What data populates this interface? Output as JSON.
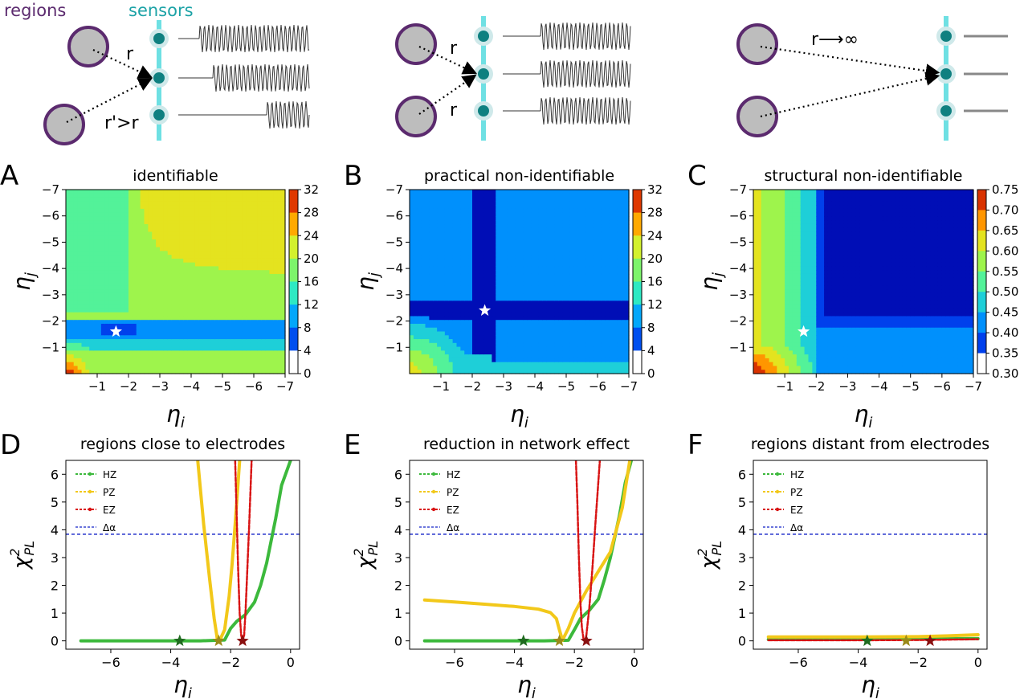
{
  "schematic": {
    "regions_label": "regions",
    "sensors_label": "sensors",
    "a": {
      "r": "r",
      "r_prime": "r'>r"
    },
    "b": {
      "r1": "r",
      "r2": "r"
    },
    "c": {
      "r_inf": "r⟶∞"
    }
  },
  "colors": {
    "regions": "#5b2a6e",
    "sensors": "#1ba2a6",
    "hz": "#3cb93c",
    "pz": "#f2c81a",
    "ez": "#d81414",
    "delta": "#1020c8"
  },
  "chart_data": [
    {
      "panel": "A",
      "type": "heatmap",
      "title": "identifiable",
      "xlabel": "ηi",
      "ylabel": "ηj",
      "xlim": [
        0,
        -7
      ],
      "ylim": [
        0,
        -7
      ],
      "xticks": [
        "−1",
        "−2",
        "−3",
        "−4",
        "−5",
        "−6",
        "−7"
      ],
      "yticks": [
        "−7",
        "−6",
        "−5",
        "−4",
        "−3",
        "−2",
        "−1"
      ],
      "colorbar": [
        0,
        4,
        8,
        12,
        16,
        20,
        24,
        28,
        32
      ],
      "star": [
        -1.6,
        -1.6
      ]
    },
    {
      "panel": "B",
      "type": "heatmap",
      "title": "practical non-identifiable",
      "xlabel": "ηi",
      "ylabel": "ηj",
      "xlim": [
        0,
        -7
      ],
      "ylim": [
        0,
        -7
      ],
      "xticks": [
        "−1",
        "−2",
        "−3",
        "−4",
        "−5",
        "−6",
        "−7"
      ],
      "yticks": [
        "−7",
        "−6",
        "−5",
        "−4",
        "−3",
        "−2",
        "−1"
      ],
      "colorbar": [
        0,
        4,
        8,
        12,
        16,
        20,
        24,
        28,
        32
      ],
      "star": [
        -2.4,
        -2.4
      ]
    },
    {
      "panel": "C",
      "type": "heatmap",
      "title": "structural non-identifiable",
      "xlabel": "ηi",
      "ylabel": "ηj",
      "xlim": [
        0,
        -7
      ],
      "ylim": [
        0,
        -7
      ],
      "xticks": [
        "−1",
        "−2",
        "−3",
        "−4",
        "−5",
        "−6",
        "−7"
      ],
      "yticks": [
        "−7",
        "−6",
        "−5",
        "−4",
        "−3",
        "−2",
        "−1"
      ],
      "colorbar": [
        "0.75",
        "0.70",
        "0.65",
        "0.60",
        "0.55",
        "0.50",
        "0.45",
        "0.40",
        "0.35",
        "0.30"
      ],
      "star": [
        -1.6,
        -1.6
      ]
    },
    {
      "panel": "D",
      "type": "line",
      "title": "regions close to electrodes",
      "xlabel": "ηi",
      "ylabel": "χ²PL",
      "xlim": [
        -7.5,
        0.3
      ],
      "ylim": [
        -0.3,
        6.5
      ],
      "xticks": [
        "−6",
        "−4",
        "−2",
        "0"
      ],
      "xtick_values": [
        -6,
        -4,
        -2,
        0
      ],
      "yticks": [
        "0",
        "1",
        "2",
        "3",
        "4",
        "5",
        "6"
      ],
      "ytick_values": [
        0,
        1,
        2,
        3,
        4,
        5,
        6
      ],
      "delta_alpha": 3.84,
      "legend": [
        "HZ",
        "PZ",
        "EZ",
        "Δα"
      ],
      "series": [
        {
          "name": "HZ",
          "x": [
            -7,
            -6,
            -5,
            -4,
            -3,
            -2.2,
            -2.0,
            -1.8,
            -1.5,
            -1.2,
            -1.0,
            -0.8,
            -0.5,
            -0.3,
            0
          ],
          "y": [
            0,
            0,
            0,
            0,
            0,
            0.03,
            0.45,
            0.7,
            0.95,
            1.4,
            2.0,
            2.8,
            4.4,
            5.6,
            6.5
          ]
        },
        {
          "name": "PZ",
          "x": [
            -3.1,
            -2.9,
            -2.7,
            -2.55,
            -2.45,
            -2.35,
            -2.2,
            -2.05,
            -1.95,
            -1.85,
            -1.7
          ],
          "y": [
            6.5,
            4.2,
            2.2,
            0.8,
            0.1,
            0.05,
            0.4,
            1.6,
            2.8,
            4.2,
            6.5
          ]
        },
        {
          "name": "EZ",
          "x": [
            -1.85,
            -1.8,
            -1.75,
            -1.7,
            -1.65,
            -1.6,
            -1.55,
            -1.5,
            -1.45,
            -1.38,
            -1.3
          ],
          "y": [
            6.5,
            4.5,
            2.6,
            1.0,
            0.2,
            0.0,
            0.2,
            1.1,
            2.4,
            4.2,
            6.5
          ]
        }
      ],
      "stars": [
        {
          "name": "HZ",
          "x": -3.7
        },
        {
          "name": "PZ",
          "x": -2.4
        },
        {
          "name": "EZ",
          "x": -1.6
        }
      ]
    },
    {
      "panel": "E",
      "type": "line",
      "title": "reduction in network effect",
      "xlabel": "ηi",
      "ylabel": "χ²PL",
      "xlim": [
        -7.5,
        0.3
      ],
      "ylim": [
        -0.3,
        6.5
      ],
      "xticks": [
        "−6",
        "−4",
        "−2",
        "0"
      ],
      "xtick_values": [
        -6,
        -4,
        -2,
        0
      ],
      "yticks": [
        "0",
        "1",
        "2",
        "3",
        "4",
        "5",
        "6"
      ],
      "ytick_values": [
        0,
        1,
        2,
        3,
        4,
        5,
        6
      ],
      "delta_alpha": 3.84,
      "legend": [
        "HZ",
        "PZ",
        "EZ",
        "Δα"
      ],
      "series": [
        {
          "name": "HZ",
          "x": [
            -7,
            -6,
            -5,
            -4,
            -3,
            -2.2,
            -2.0,
            -1.8,
            -1.5,
            -1.2,
            -1.0,
            -0.8,
            -0.5,
            -0.3,
            -0.1
          ],
          "y": [
            0,
            0,
            0,
            0,
            0,
            0.02,
            0.4,
            0.8,
            1.1,
            1.5,
            2.2,
            3.0,
            4.5,
            5.7,
            6.5
          ]
        },
        {
          "name": "PZ",
          "x": [
            -7,
            -6,
            -5,
            -4,
            -3.2,
            -2.8,
            -2.6,
            -2.5,
            -2.4,
            -2.2,
            -2.0,
            -1.6,
            -1.2,
            -0.8,
            -0.4,
            -0.15
          ],
          "y": [
            1.47,
            1.4,
            1.32,
            1.24,
            1.14,
            1.02,
            0.8,
            0.4,
            0.02,
            0.45,
            1.0,
            1.8,
            2.5,
            3.2,
            4.8,
            6.5
          ]
        },
        {
          "name": "EZ",
          "x": [
            -1.95,
            -1.9,
            -1.85,
            -1.8,
            -1.75,
            -1.7,
            -1.65,
            -1.6,
            -1.5,
            -1.4,
            -1.3,
            -1.15
          ],
          "y": [
            6.5,
            5.0,
            3.0,
            1.4,
            0.5,
            0.1,
            0.0,
            0.2,
            1.2,
            2.6,
            4.2,
            6.5
          ]
        }
      ],
      "stars": [
        {
          "name": "HZ",
          "x": -3.7
        },
        {
          "name": "PZ",
          "x": -2.5
        },
        {
          "name": "EZ",
          "x": -1.6
        }
      ]
    },
    {
      "panel": "F",
      "type": "line",
      "title": "regions distant from electrodes",
      "xlabel": "ηi",
      "ylabel": "χ²PL",
      "xlim": [
        -7.5,
        0.3
      ],
      "ylim": [
        -0.3,
        6.5
      ],
      "xticks": [
        "−6",
        "−4",
        "−2",
        "0"
      ],
      "xtick_values": [
        -6,
        -4,
        -2,
        0
      ],
      "yticks": [
        "0",
        "1",
        "2",
        "3",
        "4",
        "5",
        "6"
      ],
      "ytick_values": [
        0,
        1,
        2,
        3,
        4,
        5,
        6
      ],
      "delta_alpha": 3.84,
      "legend": [
        "HZ",
        "PZ",
        "EZ",
        "Δα"
      ],
      "series": [
        {
          "name": "HZ",
          "x": [
            -7,
            0
          ],
          "y": [
            0.05,
            0.08
          ]
        },
        {
          "name": "PZ",
          "x": [
            -7,
            -4,
            -2,
            -1,
            0
          ],
          "y": [
            0.14,
            0.14,
            0.15,
            0.18,
            0.22
          ]
        },
        {
          "name": "EZ",
          "x": [
            -7,
            -4,
            -2,
            0
          ],
          "y": [
            0.02,
            0.02,
            0.03,
            0.06
          ]
        }
      ],
      "stars": [
        {
          "name": "HZ",
          "x": -3.7
        },
        {
          "name": "PZ",
          "x": -2.4
        },
        {
          "name": "EZ",
          "x": -1.6
        }
      ]
    }
  ]
}
